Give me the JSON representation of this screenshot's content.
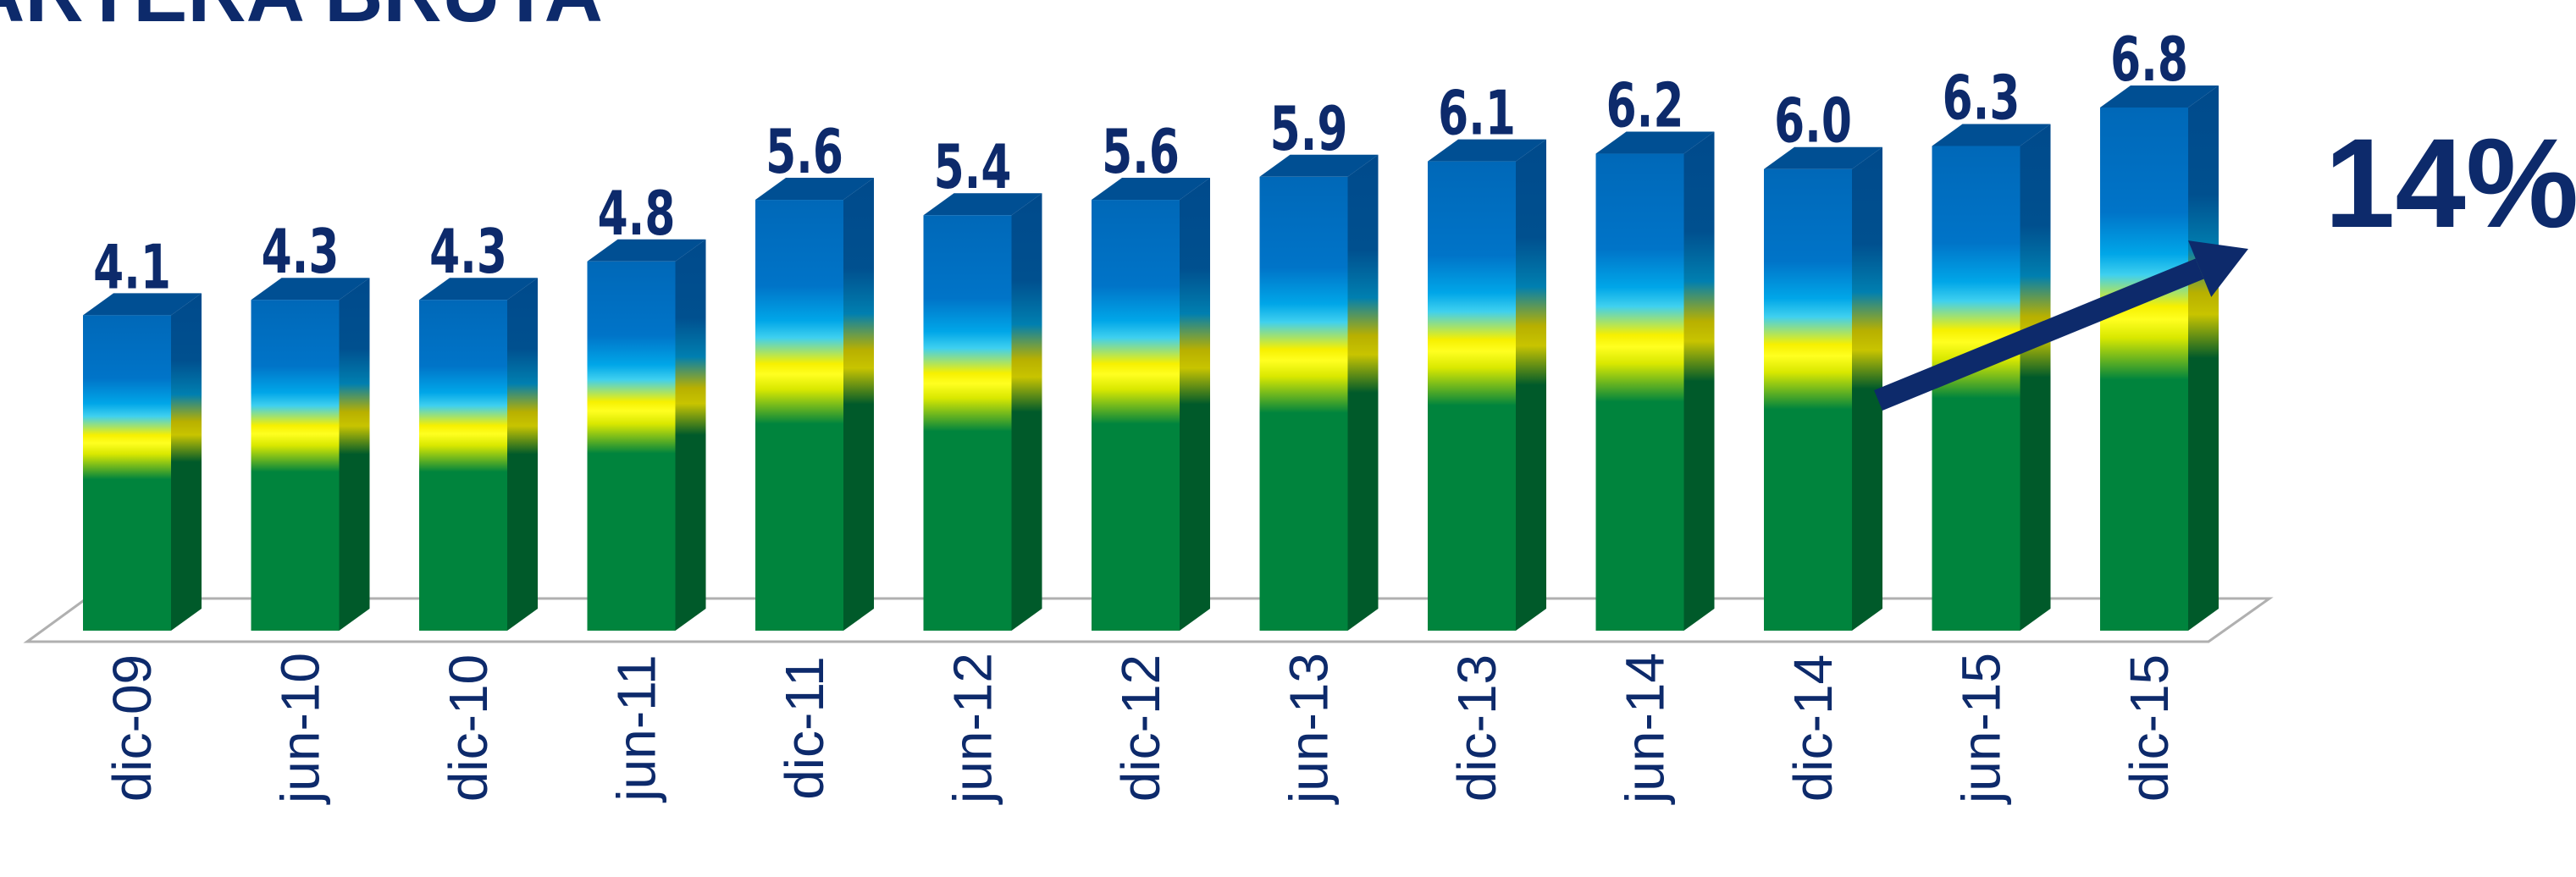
{
  "title": "ARTERA BRUTA",
  "annotation": "14%",
  "colors": {
    "text": "#0d2a6b",
    "bar_top": "#0070c0",
    "bar_mid_cyan": "#00b0f0",
    "bar_highlight": "#ffff00",
    "bar_bottom": "#00843d",
    "arrow": "#0d2a6b"
  },
  "chart_data": {
    "type": "bar",
    "title": "ARTERA BRUTA",
    "categories": [
      "dic-09",
      "jun-10",
      "dic-10",
      "jun-11",
      "dic-11",
      "jun-12",
      "dic-12",
      "jun-13",
      "dic-13",
      "jun-14",
      "dic-14",
      "jun-15",
      "dic-15"
    ],
    "values": [
      4.1,
      4.3,
      4.3,
      4.8,
      5.6,
      5.4,
      5.6,
      5.9,
      6.1,
      6.2,
      6.0,
      6.3,
      6.8
    ],
    "value_labels": [
      "4.1",
      "4.3",
      "4.3",
      "4.8",
      "5.6",
      "5.4",
      "5.6",
      "5.9",
      "6.1",
      "6.2",
      "6.0",
      "6.3",
      "6.8"
    ],
    "xlabel": "",
    "ylabel": "",
    "ylim": [
      0,
      6.8
    ],
    "grid": false,
    "legend": "none",
    "annotations": [
      "14%"
    ]
  }
}
